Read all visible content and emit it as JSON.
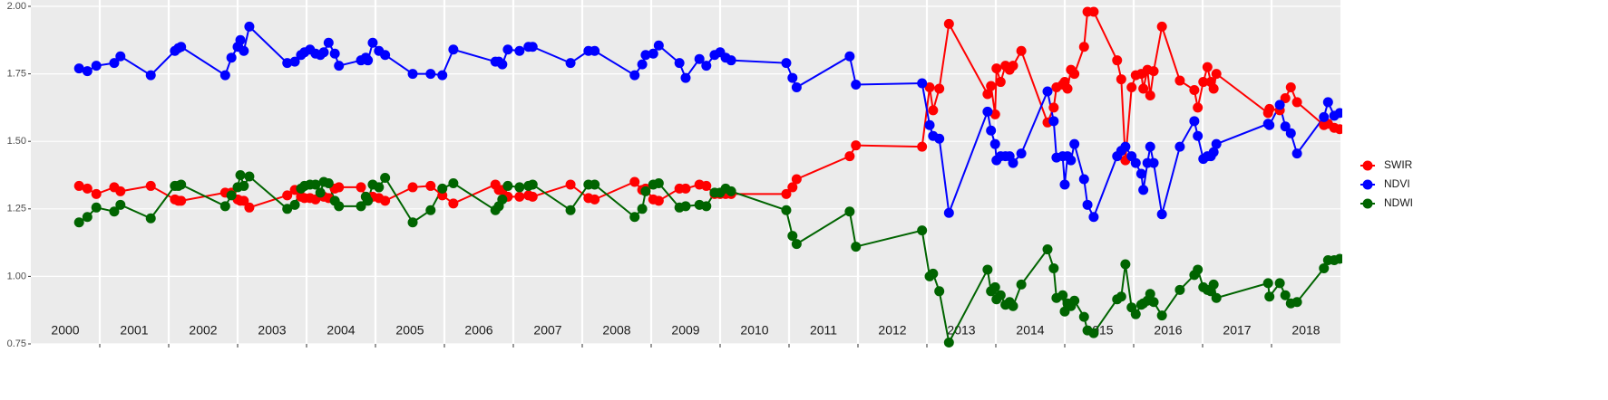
{
  "chart_data": {
    "type": "line",
    "legend": "right",
    "grid": true,
    "xlim": [
      2000,
      2019
    ],
    "xticks": [
      2001,
      2002,
      2003,
      2004,
      2005,
      2006,
      2007,
      2008,
      2009,
      2010,
      2011,
      2012,
      2013,
      2014,
      2015,
      2016,
      2017,
      2018
    ],
    "year_labels": [
      "2000",
      "2001",
      "2002",
      "2003",
      "2004",
      "2005",
      "2006",
      "2007",
      "2008",
      "2009",
      "2010",
      "2011",
      "2012",
      "2013",
      "2014",
      "2015",
      "2016",
      "2017",
      "2018"
    ],
    "ylim": [
      0.75,
      2.0
    ],
    "yticks": [
      {
        "value": 0.75,
        "label": "0.75"
      },
      {
        "value": 1.0,
        "label": "1.00"
      },
      {
        "value": 1.25,
        "label": "1.25"
      },
      {
        "value": 1.5,
        "label": "1.50"
      },
      {
        "value": 1.75,
        "label": "1.75"
      },
      {
        "value": 2.0,
        "label": "2.00"
      }
    ],
    "x": [
      2000.7,
      2000.82,
      2000.95,
      2001.21,
      2001.3,
      2001.74,
      2002.09,
      2002.14,
      2002.18,
      2002.82,
      2002.91,
      2003.0,
      2003.04,
      2003.09,
      2003.17,
      2003.72,
      2003.83,
      2003.92,
      2003.97,
      2004.05,
      2004.13,
      2004.2,
      2004.25,
      2004.32,
      2004.41,
      2004.47,
      2004.79,
      2004.86,
      2004.89,
      2004.96,
      2005.05,
      2005.14,
      2005.54,
      2005.8,
      2005.97,
      2006.13,
      2006.74,
      2006.79,
      2006.84,
      2006.92,
      2007.09,
      2007.22,
      2007.28,
      2007.83,
      2008.09,
      2008.18,
      2008.76,
      2008.87,
      2008.92,
      2009.03,
      2009.11,
      2009.41,
      2009.5,
      2009.7,
      2009.8,
      2009.92,
      2010.0,
      2010.08,
      2010.16,
      2010.96,
      2011.05,
      2011.11,
      2011.88,
      2011.97,
      2012.93,
      2013.04,
      2013.09,
      2013.18,
      2013.32,
      2013.88,
      2013.93,
      2013.99,
      2014.01,
      2014.07,
      2014.14,
      2014.2,
      2014.25,
      2014.37,
      2014.75,
      2014.84,
      2014.88,
      2014.97,
      2015.0,
      2015.04,
      2015.09,
      2015.14,
      2015.28,
      2015.33,
      2015.42,
      2015.76,
      2015.82,
      2015.88,
      2015.97,
      2016.03,
      2016.11,
      2016.14,
      2016.2,
      2016.24,
      2016.29,
      2016.41,
      2016.67,
      2016.88,
      2016.93,
      2017.01,
      2017.07,
      2017.12,
      2017.16,
      2017.2,
      2017.95,
      2017.97,
      2018.12,
      2018.2,
      2018.28,
      2018.37,
      2018.76,
      2018.82,
      2018.91,
      2018.99
    ],
    "series": [
      {
        "name": "SWIR",
        "color": "#ff0000",
        "values": [
          1.335,
          1.325,
          1.305,
          1.33,
          1.315,
          1.335,
          1.285,
          1.28,
          1.28,
          1.31,
          1.31,
          1.285,
          1.28,
          1.28,
          1.255,
          1.3,
          1.32,
          1.295,
          1.29,
          1.29,
          1.285,
          1.3,
          1.295,
          1.29,
          1.325,
          1.33,
          1.33,
          1.295,
          1.285,
          1.295,
          1.29,
          1.28,
          1.33,
          1.335,
          1.3,
          1.27,
          1.34,
          1.32,
          1.32,
          1.295,
          1.295,
          1.3,
          1.295,
          1.34,
          1.29,
          1.285,
          1.35,
          1.32,
          1.325,
          1.285,
          1.28,
          1.325,
          1.325,
          1.34,
          1.335,
          1.305,
          1.305,
          1.305,
          1.305,
          1.305,
          1.33,
          1.36,
          1.445,
          1.485,
          1.48,
          1.7,
          1.615,
          1.695,
          1.935,
          1.675,
          1.705,
          1.6,
          1.77,
          1.72,
          1.78,
          1.765,
          1.78,
          1.835,
          1.57,
          1.625,
          1.7,
          1.71,
          1.72,
          1.695,
          1.765,
          1.75,
          1.85,
          1.98,
          1.98,
          1.8,
          1.73,
          1.43,
          1.7,
          1.745,
          1.75,
          1.695,
          1.765,
          1.67,
          1.76,
          1.925,
          1.725,
          1.69,
          1.625,
          1.72,
          1.775,
          1.72,
          1.695,
          1.75,
          1.605,
          1.62,
          1.615,
          1.66,
          1.7,
          1.645,
          1.56,
          1.565,
          1.55,
          1.545
        ]
      },
      {
        "name": "NDVI",
        "color": "#0000ff",
        "values": [
          1.77,
          1.76,
          1.78,
          1.79,
          1.815,
          1.745,
          1.835,
          1.845,
          1.85,
          1.745,
          1.81,
          1.85,
          1.875,
          1.835,
          1.925,
          1.79,
          1.795,
          1.82,
          1.83,
          1.84,
          1.825,
          1.82,
          1.83,
          1.865,
          1.825,
          1.78,
          1.8,
          1.81,
          1.8,
          1.865,
          1.835,
          1.82,
          1.75,
          1.75,
          1.745,
          1.84,
          1.795,
          1.795,
          1.785,
          1.84,
          1.835,
          1.85,
          1.85,
          1.79,
          1.835,
          1.835,
          1.745,
          1.785,
          1.82,
          1.825,
          1.855,
          1.79,
          1.735,
          1.805,
          1.78,
          1.82,
          1.83,
          1.81,
          1.8,
          1.79,
          1.735,
          1.7,
          1.815,
          1.71,
          1.715,
          1.56,
          1.52,
          1.51,
          1.235,
          1.61,
          1.54,
          1.49,
          1.43,
          1.445,
          1.445,
          1.445,
          1.42,
          1.455,
          1.685,
          1.575,
          1.44,
          1.445,
          1.34,
          1.445,
          1.43,
          1.49,
          1.36,
          1.265,
          1.22,
          1.445,
          1.465,
          1.48,
          1.445,
          1.42,
          1.38,
          1.32,
          1.42,
          1.48,
          1.42,
          1.23,
          1.48,
          1.575,
          1.52,
          1.435,
          1.445,
          1.445,
          1.46,
          1.49,
          1.565,
          1.56,
          1.635,
          1.555,
          1.53,
          1.455,
          1.59,
          1.645,
          1.595,
          1.605
        ]
      },
      {
        "name": "NDWI",
        "color": "#006400",
        "values": [
          1.2,
          1.22,
          1.255,
          1.24,
          1.265,
          1.215,
          1.335,
          1.335,
          1.34,
          1.26,
          1.3,
          1.33,
          1.375,
          1.335,
          1.37,
          1.25,
          1.265,
          1.325,
          1.335,
          1.34,
          1.34,
          1.31,
          1.35,
          1.345,
          1.28,
          1.26,
          1.26,
          1.295,
          1.28,
          1.34,
          1.33,
          1.365,
          1.2,
          1.245,
          1.325,
          1.345,
          1.245,
          1.26,
          1.285,
          1.335,
          1.33,
          1.335,
          1.34,
          1.245,
          1.34,
          1.34,
          1.22,
          1.25,
          1.315,
          1.34,
          1.345,
          1.255,
          1.26,
          1.265,
          1.26,
          1.31,
          1.31,
          1.325,
          1.315,
          1.245,
          1.15,
          1.12,
          1.24,
          1.11,
          1.17,
          1.0,
          1.01,
          0.945,
          0.755,
          1.025,
          0.945,
          0.96,
          0.915,
          0.93,
          0.895,
          0.905,
          0.89,
          0.97,
          1.1,
          1.03,
          0.92,
          0.93,
          0.87,
          0.9,
          0.89,
          0.91,
          0.85,
          0.8,
          0.79,
          0.915,
          0.925,
          1.045,
          0.885,
          0.86,
          0.895,
          0.9,
          0.91,
          0.935,
          0.905,
          0.855,
          0.95,
          1.005,
          1.025,
          0.96,
          0.95,
          0.945,
          0.97,
          0.92,
          0.975,
          0.925,
          0.975,
          0.93,
          0.9,
          0.905,
          1.03,
          1.06,
          1.06,
          1.065
        ]
      }
    ]
  }
}
